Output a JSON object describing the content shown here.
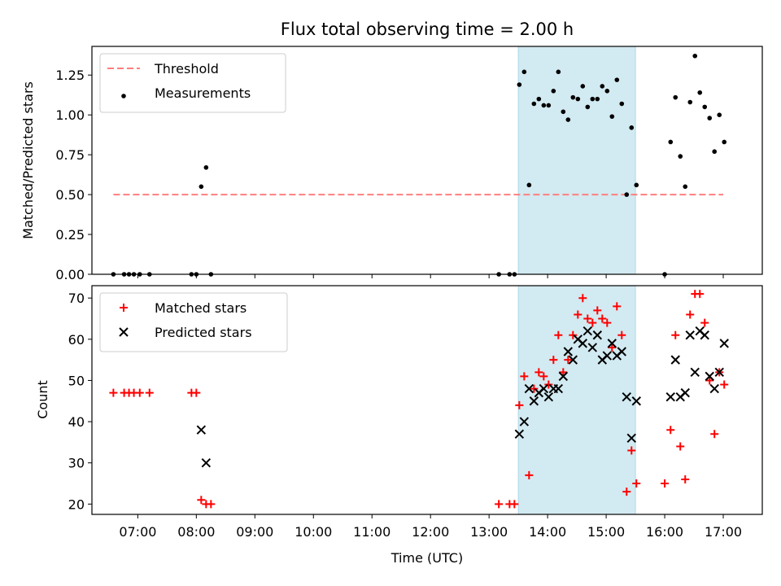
{
  "chart_data": [
    {
      "type": "scatter",
      "title": "Flux total observing time = 2.00 h",
      "ylabel": "Matched/Predicted stars",
      "xlabel": "",
      "xlim": [
        "06:13",
        "17:40"
      ],
      "ylim": [
        0,
        1.43
      ],
      "yticks": [
        "0.00",
        "0.25",
        "0.50",
        "0.75",
        "1.00",
        "1.25"
      ],
      "grid": false,
      "legend_position": "top-left",
      "highlight_span": [
        "13:30",
        "15:30"
      ],
      "threshold": {
        "name": "Threshold",
        "value": 0.5,
        "x_range": [
          "06:35",
          "17:00"
        ],
        "color": "#ff7f7f"
      },
      "series": [
        {
          "name": "Measurements",
          "color": "#000000",
          "points": [
            [
              "06:35",
              0
            ],
            [
              "06:46",
              0
            ],
            [
              "06:51",
              0
            ],
            [
              "06:56",
              0
            ],
            [
              "07:02",
              0
            ],
            [
              "07:12",
              0
            ],
            [
              "07:55",
              0
            ],
            [
              "08:00",
              0
            ],
            [
              "08:05",
              0.55
            ],
            [
              "08:10",
              0.67
            ],
            [
              "08:15",
              0
            ],
            [
              "13:10",
              0
            ],
            [
              "13:21",
              0
            ],
            [
              "13:26",
              0
            ],
            [
              "13:31",
              1.19
            ],
            [
              "13:36",
              1.27
            ],
            [
              "13:41",
              0.56
            ],
            [
              "13:46",
              1.07
            ],
            [
              "13:51",
              1.1
            ],
            [
              "13:56",
              1.06
            ],
            [
              "14:01",
              1.06
            ],
            [
              "14:06",
              1.15
            ],
            [
              "14:11",
              1.27
            ],
            [
              "14:16",
              1.02
            ],
            [
              "14:21",
              0.97
            ],
            [
              "14:26",
              1.11
            ],
            [
              "14:31",
              1.1
            ],
            [
              "14:36",
              1.18
            ],
            [
              "14:41",
              1.05
            ],
            [
              "14:46",
              1.1
            ],
            [
              "14:51",
              1.1
            ],
            [
              "14:56",
              1.18
            ],
            [
              "15:01",
              1.15
            ],
            [
              "15:06",
              0.99
            ],
            [
              "15:11",
              1.22
            ],
            [
              "15:16",
              1.07
            ],
            [
              "15:21",
              0.5
            ],
            [
              "15:26",
              0.92
            ],
            [
              "15:31",
              0.56
            ],
            [
              "16:00",
              0
            ],
            [
              "16:06",
              0.83
            ],
            [
              "16:11",
              1.11
            ],
            [
              "16:16",
              0.74
            ],
            [
              "16:21",
              0.55
            ],
            [
              "16:26",
              1.08
            ],
            [
              "16:31",
              1.37
            ],
            [
              "16:36",
              1.14
            ],
            [
              "16:41",
              1.05
            ],
            [
              "16:46",
              0.98
            ],
            [
              "16:51",
              0.77
            ],
            [
              "16:56",
              1.0
            ],
            [
              "17:01",
              0.83
            ]
          ]
        }
      ]
    },
    {
      "type": "scatter",
      "title": "",
      "ylabel": "Count",
      "xlabel": "Time (UTC)",
      "xlim": [
        "06:13",
        "17:40"
      ],
      "ylim": [
        17.5,
        73
      ],
      "yticks": [
        "20",
        "30",
        "40",
        "50",
        "60",
        "70"
      ],
      "xticks": [
        "07:00",
        "08:00",
        "09:00",
        "10:00",
        "11:00",
        "12:00",
        "13:00",
        "14:00",
        "15:00",
        "16:00",
        "17:00"
      ],
      "grid": false,
      "legend_position": "top-left",
      "highlight_span": [
        "13:30",
        "15:30"
      ],
      "series": [
        {
          "name": "Matched stars",
          "marker": "plus",
          "color": "#ff0000",
          "points": [
            [
              "06:35",
              47
            ],
            [
              "06:46",
              47
            ],
            [
              "06:51",
              47
            ],
            [
              "06:56",
              47
            ],
            [
              "07:02",
              47
            ],
            [
              "07:12",
              47
            ],
            [
              "07:55",
              47
            ],
            [
              "08:00",
              47
            ],
            [
              "08:05",
              21
            ],
            [
              "08:10",
              20
            ],
            [
              "08:15",
              20
            ],
            [
              "13:10",
              20
            ],
            [
              "13:21",
              20
            ],
            [
              "13:26",
              20
            ],
            [
              "13:31",
              44
            ],
            [
              "13:36",
              51
            ],
            [
              "13:41",
              27
            ],
            [
              "13:46",
              48
            ],
            [
              "13:51",
              52
            ],
            [
              "13:56",
              51
            ],
            [
              "14:01",
              49
            ],
            [
              "14:06",
              55
            ],
            [
              "14:11",
              61
            ],
            [
              "14:16",
              52
            ],
            [
              "14:21",
              55
            ],
            [
              "14:26",
              61
            ],
            [
              "14:31",
              66
            ],
            [
              "14:36",
              70
            ],
            [
              "14:41",
              65
            ],
            [
              "14:46",
              64
            ],
            [
              "14:51",
              67
            ],
            [
              "14:56",
              65
            ],
            [
              "15:01",
              64
            ],
            [
              "15:06",
              58
            ],
            [
              "15:11",
              68
            ],
            [
              "15:16",
              61
            ],
            [
              "15:21",
              23
            ],
            [
              "15:26",
              33
            ],
            [
              "15:31",
              25
            ],
            [
              "16:00",
              25
            ],
            [
              "16:06",
              38
            ],
            [
              "16:11",
              61
            ],
            [
              "16:16",
              34
            ],
            [
              "16:21",
              26
            ],
            [
              "16:26",
              66
            ],
            [
              "16:31",
              71
            ],
            [
              "16:36",
              71
            ],
            [
              "16:41",
              64
            ],
            [
              "16:46",
              50
            ],
            [
              "16:51",
              37
            ],
            [
              "16:56",
              52
            ],
            [
              "17:01",
              49
            ]
          ]
        },
        {
          "name": "Predicted stars",
          "marker": "x",
          "color": "#000000",
          "points": [
            [
              "08:05",
              38
            ],
            [
              "08:10",
              30
            ],
            [
              "13:31",
              37
            ],
            [
              "13:36",
              40
            ],
            [
              "13:41",
              48
            ],
            [
              "13:46",
              45
            ],
            [
              "13:51",
              47
            ],
            [
              "13:56",
              48
            ],
            [
              "14:01",
              46
            ],
            [
              "14:06",
              48
            ],
            [
              "14:11",
              48
            ],
            [
              "14:16",
              51
            ],
            [
              "14:21",
              57
            ],
            [
              "14:26",
              55
            ],
            [
              "14:31",
              60
            ],
            [
              "14:36",
              59
            ],
            [
              "14:41",
              62
            ],
            [
              "14:46",
              58
            ],
            [
              "14:51",
              61
            ],
            [
              "14:56",
              55
            ],
            [
              "15:01",
              56
            ],
            [
              "15:06",
              59
            ],
            [
              "15:11",
              56
            ],
            [
              "15:16",
              57
            ],
            [
              "15:21",
              46
            ],
            [
              "15:26",
              36
            ],
            [
              "15:31",
              45
            ],
            [
              "16:06",
              46
            ],
            [
              "16:11",
              55
            ],
            [
              "16:16",
              46
            ],
            [
              "16:21",
              47
            ],
            [
              "16:26",
              61
            ],
            [
              "16:31",
              52
            ],
            [
              "16:36",
              62
            ],
            [
              "16:41",
              61
            ],
            [
              "16:46",
              51
            ],
            [
              "16:51",
              48
            ],
            [
              "16:56",
              52
            ],
            [
              "17:01",
              59
            ]
          ]
        }
      ]
    }
  ]
}
